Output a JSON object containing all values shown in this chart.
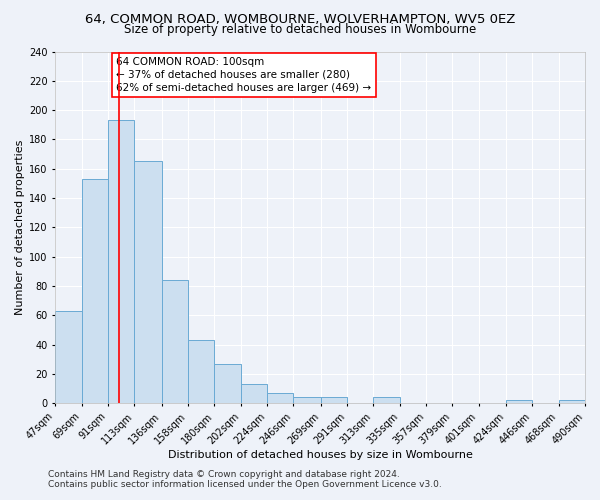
{
  "title": "64, COMMON ROAD, WOMBOURNE, WOLVERHAMPTON, WV5 0EZ",
  "subtitle": "Size of property relative to detached houses in Wombourne",
  "xlabel": "Distribution of detached houses by size in Wombourne",
  "ylabel": "Number of detached properties",
  "bin_edges": [
    47,
    69,
    91,
    113,
    136,
    158,
    180,
    202,
    224,
    246,
    269,
    291,
    313,
    335,
    357,
    379,
    401,
    424,
    446,
    468,
    490
  ],
  "bin_labels": [
    "47sqm",
    "69sqm",
    "91sqm",
    "113sqm",
    "136sqm",
    "158sqm",
    "180sqm",
    "202sqm",
    "224sqm",
    "246sqm",
    "269sqm",
    "291sqm",
    "313sqm",
    "335sqm",
    "357sqm",
    "379sqm",
    "401sqm",
    "424sqm",
    "446sqm",
    "468sqm",
    "490sqm"
  ],
  "bar_heights": [
    63,
    153,
    193,
    165,
    84,
    43,
    27,
    13,
    7,
    4,
    4,
    0,
    4,
    0,
    0,
    0,
    0,
    2,
    0,
    2
  ],
  "bar_color": "#ccdff0",
  "bar_edge_color": "#6aaad4",
  "red_line_x": 100,
  "ylim": [
    0,
    240
  ],
  "yticks": [
    0,
    20,
    40,
    60,
    80,
    100,
    120,
    140,
    160,
    180,
    200,
    220,
    240
  ],
  "annotation_title": "64 COMMON ROAD: 100sqm",
  "annotation_line1": "← 37% of detached houses are smaller (280)",
  "annotation_line2": "62% of semi-detached houses are larger (469) →",
  "footer1": "Contains HM Land Registry data © Crown copyright and database right 2024.",
  "footer2": "Contains public sector information licensed under the Open Government Licence v3.0.",
  "background_color": "#eef2f9",
  "grid_color": "#ffffff",
  "title_fontsize": 9.5,
  "subtitle_fontsize": 8.5,
  "axis_label_fontsize": 8,
  "tick_fontsize": 7,
  "annotation_fontsize": 7.5,
  "footer_fontsize": 6.5
}
